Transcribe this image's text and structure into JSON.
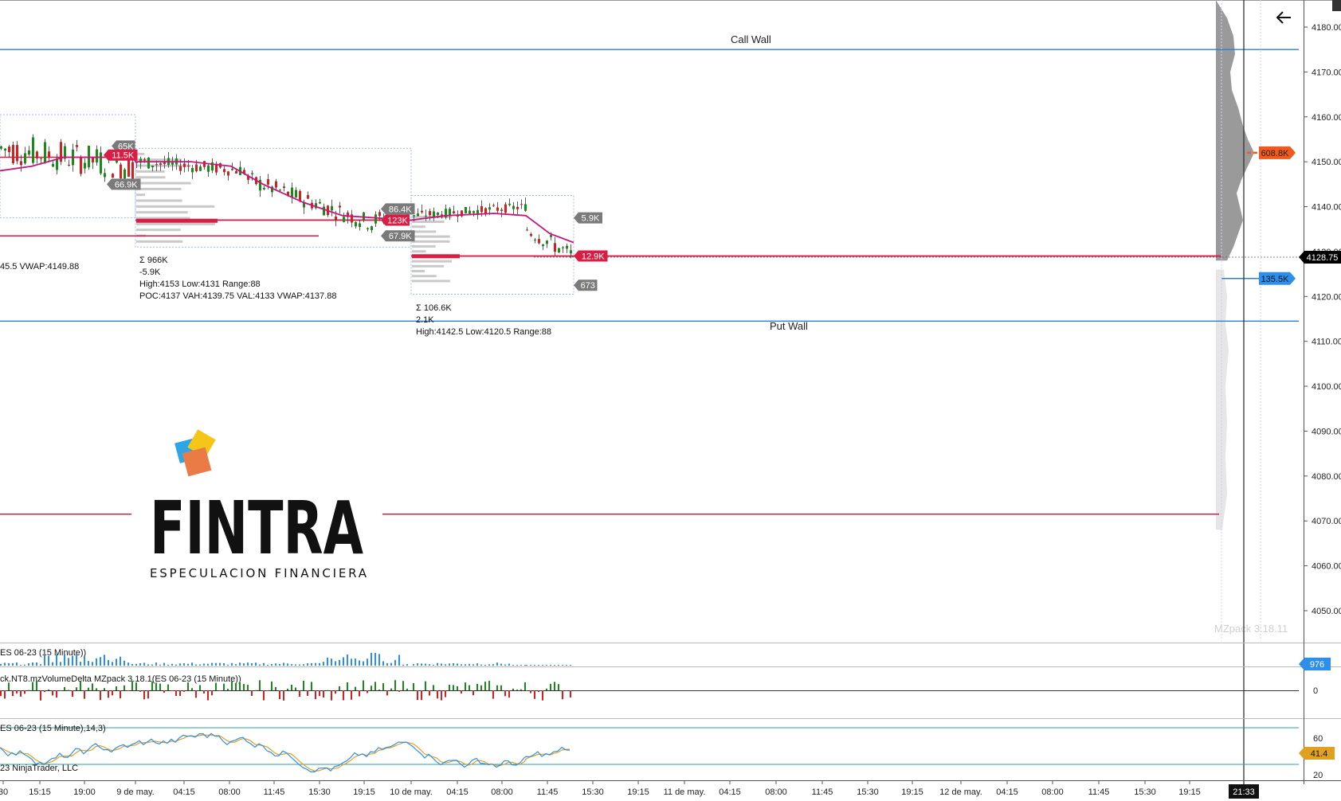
{
  "watermark": "MZpack 3.18.11",
  "back_icon": "back-arrow-icon",
  "levels": {
    "call_wall": {
      "label": "Call Wall",
      "price": 4175
    },
    "put_wall": {
      "label": "Put Wall",
      "price": 4114.5
    },
    "red_line_price": 4071.5
  },
  "price_axis": {
    "ticks": [
      "4180.00",
      "4170.00",
      "4160.00",
      "4150.00",
      "4140.00",
      "4130.00",
      "4120.00",
      "4110.00",
      "4100.00",
      "4090.00",
      "4080.00",
      "4070.00",
      "4060.00",
      "4050.00"
    ],
    "current_price": "4128.75",
    "poc_tag": "608.8K",
    "low_tag": "135.5K",
    "current_price_color": "#000000",
    "poc_color": "#f05a1e",
    "low_tag_color": "#2d8fea"
  },
  "sessions": [
    {
      "stats_text": "45.5 VWAP:4149.88",
      "tags": [
        "65K",
        "11.5K",
        "66.9K"
      ]
    },
    {
      "sum": "Σ 966K",
      "delta": "-5.9K",
      "delta_color": "#e8384f",
      "range": "High:4153 Low:4131 Range:88",
      "poc": "POC:4137 VAH:4139.75 VAL:4133 VWAP:4137.88",
      "tags": [
        "86.4K",
        "123K",
        "67.9K"
      ]
    },
    {
      "sum": "Σ 106.6K",
      "delta": "2.1K",
      "delta_color": "#5cd65c",
      "range": "High:4142.5 Low:4120.5 Range:88",
      "tags": [
        "5.9K",
        "12.9K",
        "673"
      ]
    }
  ],
  "indicators": {
    "volume": {
      "label": "ES 06-23 (15 Minute))",
      "tag": "976"
    },
    "delta": {
      "label": "ck.NT8.mzVolumeDelta MZpack 3.18.1(ES 06-23 (15 Minute))",
      "zero": "0"
    },
    "stoch": {
      "label": "ES 06-23 (15 Minute),14,3)",
      "copyright": "23 NinjaTrader, LLC",
      "level_high": "60",
      "level_low": "20",
      "tag": "41.4"
    }
  },
  "time_axis": {
    "labels": [
      "30",
      "15:15",
      "19:00",
      "9 de may.",
      "04:15",
      "08:00",
      "11:45",
      "15:30",
      "19:15",
      "10 de may.",
      "04:15",
      "08:00",
      "11:45",
      "15:30",
      "19:15",
      "11 de may.",
      "04:15",
      "08:00",
      "11:45",
      "15:30",
      "19:15",
      "12 de may.",
      "04:15",
      "08:00",
      "11:45",
      "15:30",
      "19:15"
    ],
    "cursor_time": "21:33"
  },
  "logo": {
    "name": "FINTRA",
    "tagline": "ESPECULACION FINANCIERA",
    "colors": [
      "#2fa4e7",
      "#f5c518",
      "#ea7b47"
    ]
  },
  "colors": {
    "wall_line": "#2d7fd8",
    "red_level": "#d81e45",
    "vwap": "#c2187a",
    "bull": "#1a8a1a",
    "bear": "#d62020",
    "volume_bar": "#2d8fea",
    "stoch_k": "#2d8fea",
    "stoch_d": "#e0a020"
  }
}
